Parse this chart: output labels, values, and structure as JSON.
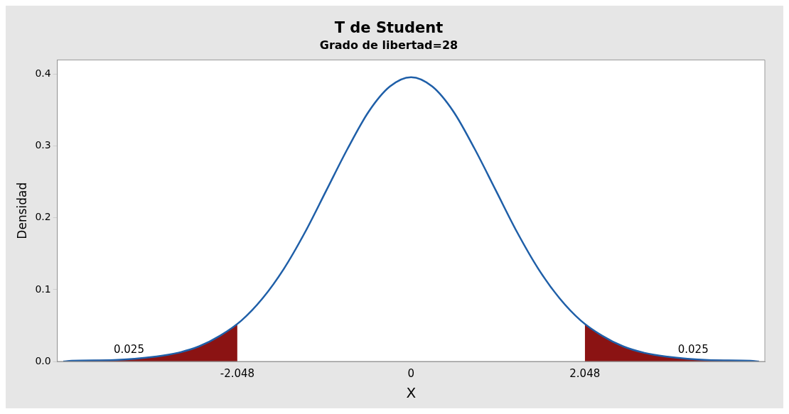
{
  "chart_data": {
    "type": "line",
    "title": "T de Student",
    "subtitle": "Grado de libertad=28",
    "xlabel": "X",
    "ylabel": "Densidad",
    "xlim": [
      -4.17,
      4.17
    ],
    "xticks": [
      -2.048,
      0,
      2.048
    ],
    "ylim": [
      0,
      0.42
    ],
    "yticks": [
      {
        "value": 0,
        "label": "0.0"
      },
      0.1,
      0.2,
      0.3,
      0.4
    ],
    "grid": false,
    "legend": false,
    "marker": "none",
    "line_style": "solid",
    "series": [
      {
        "type": "area",
        "color": "#8b1313",
        "x": [
          -4.1,
          -4,
          -3.5,
          -3,
          -2.75,
          -2.5,
          -2.25,
          -2.048
        ],
        "values": [
          0,
          0.001,
          0.002,
          0.007,
          0.012,
          0.021,
          0.036,
          0.052
        ]
      },
      {
        "type": "area",
        "color": "#8b1313",
        "x": [
          2.048,
          2.25,
          2.5,
          2.75,
          3,
          3.5,
          4,
          4.1
        ],
        "values": [
          0.052,
          0.036,
          0.021,
          0.012,
          0.007,
          0.002,
          0.001,
          0
        ]
      },
      {
        "type": "line",
        "color": "#1f5fa8",
        "x": [
          -4.1,
          -4,
          -3.5,
          -3,
          -2.75,
          -2.5,
          -2.25,
          -2,
          -1.75,
          -1.5,
          -1.25,
          -1,
          -0.75,
          -0.5,
          -0.25,
          0,
          0.25,
          0.5,
          0.75,
          1,
          1.25,
          1.5,
          1.75,
          2,
          2.25,
          2.5,
          2.75,
          3,
          3.5,
          4,
          4.1
        ],
        "values": [
          0,
          0.001,
          0.002,
          0.007,
          0.012,
          0.021,
          0.036,
          0.057,
          0.088,
          0.129,
          0.18,
          0.238,
          0.296,
          0.348,
          0.383,
          0.396,
          0.383,
          0.348,
          0.296,
          0.238,
          0.18,
          0.129,
          0.088,
          0.057,
          0.036,
          0.021,
          0.012,
          0.007,
          0.002,
          0.001,
          0
        ]
      }
    ],
    "annotations": [
      "0.025",
      "0.025"
    ]
  }
}
